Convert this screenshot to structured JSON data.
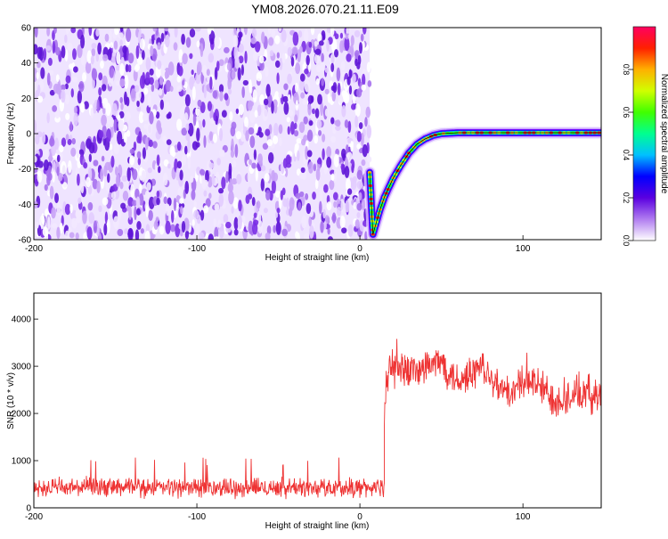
{
  "title": "YM08.2026.070.21.11.E09",
  "chart_data": [
    {
      "type": "heatmap",
      "xlabel": "Height of straight line (km)",
      "ylabel": "Frequency (Hz)",
      "xlim": [
        -200,
        148
      ],
      "ylim": [
        -60,
        60
      ],
      "xticks": [
        "-200",
        "-100",
        "0",
        "100"
      ],
      "yticks": [
        "-60",
        "-40",
        "-20",
        "0",
        "20",
        "40",
        "60"
      ],
      "colorbar": {
        "label": "Normalized spectral amplitude",
        "ticks": [
          "0.0",
          "0.2",
          "0.4",
          "0.6",
          "0.8"
        ],
        "range": [
          0,
          1
        ],
        "colors": [
          "#ffffff",
          "#b07cf0",
          "#5a00e0",
          "#0000ff",
          "#00c0ff",
          "#00ff90",
          "#40ff00",
          "#d0ff00",
          "#ffb000",
          "#ff2000",
          "#ff0060"
        ]
      },
      "noise_region_x": [
        -200,
        6
      ],
      "noise_color": "#7a2ee6",
      "signal_curve": [
        {
          "x": 6,
          "y": -22
        },
        {
          "x": 8,
          "y": -57
        },
        {
          "x": 12,
          "y": -44
        },
        {
          "x": 15,
          "y": -36
        },
        {
          "x": 20,
          "y": -26
        },
        {
          "x": 25,
          "y": -18
        },
        {
          "x": 30,
          "y": -11
        },
        {
          "x": 35,
          "y": -6
        },
        {
          "x": 40,
          "y": -3
        },
        {
          "x": 45,
          "y": -1
        },
        {
          "x": 50,
          "y": 0
        },
        {
          "x": 60,
          "y": 0.5
        },
        {
          "x": 80,
          "y": 0.5
        },
        {
          "x": 100,
          "y": 0.5
        },
        {
          "x": 120,
          "y": 0.5
        },
        {
          "x": 148,
          "y": 0.5
        }
      ]
    },
    {
      "type": "line",
      "xlabel": "Height of straight line (km)",
      "ylabel": "SNR (10 * v/v)",
      "xlim": [
        -200,
        148
      ],
      "ylim": [
        0,
        4550
      ],
      "xticks": [
        "-200",
        "-100",
        "0",
        "100"
      ],
      "yticks": [
        "0",
        "1000",
        "2000",
        "3000",
        "4000"
      ],
      "color": "#ee3333",
      "segments": [
        {
          "x": [
            -200,
            15
          ],
          "baseline": 430,
          "jitter": 250,
          "peak": 1050
        },
        {
          "x": [
            15,
            148
          ],
          "envelope": [
            {
              "x": 15,
              "y": 2000
            },
            {
              "x": 17,
              "y": 2900
            },
            {
              "x": 25,
              "y": 3000
            },
            {
              "x": 35,
              "y": 2900
            },
            {
              "x": 50,
              "y": 3100
            },
            {
              "x": 60,
              "y": 2700
            },
            {
              "x": 75,
              "y": 3000
            },
            {
              "x": 90,
              "y": 2400
            },
            {
              "x": 105,
              "y": 2700
            },
            {
              "x": 120,
              "y": 2300
            },
            {
              "x": 135,
              "y": 2400
            },
            {
              "x": 148,
              "y": 2400
            }
          ],
          "jitter": 500
        }
      ]
    }
  ]
}
